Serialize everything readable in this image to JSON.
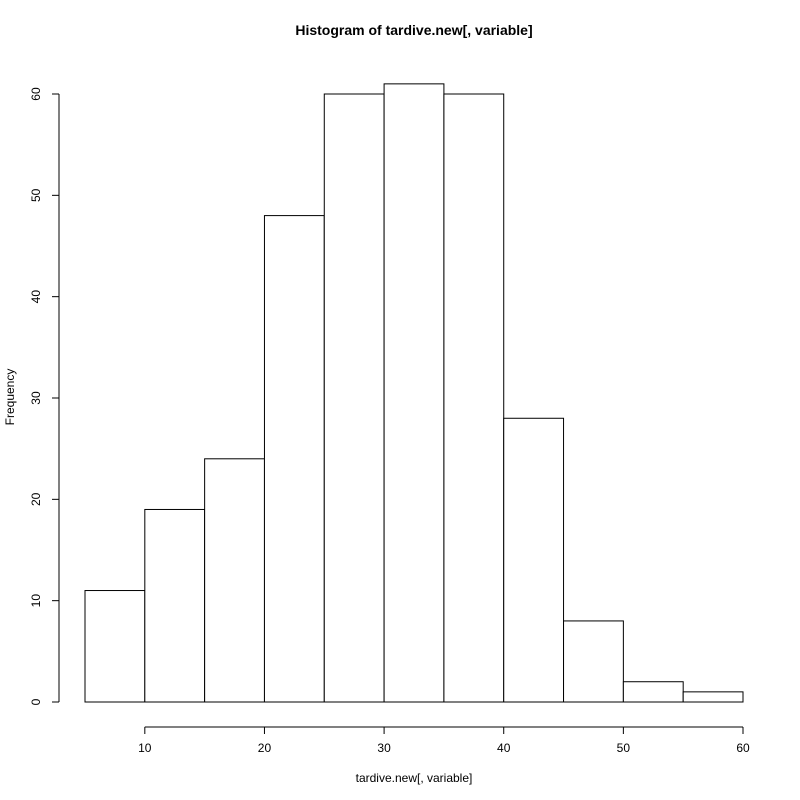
{
  "chart_data": {
    "type": "bar",
    "subtype": "histogram",
    "title": "Histogram of tardive.new[, variable]",
    "xlabel": "tardive.new[, variable]",
    "ylabel": "Frequency",
    "bins": [
      [
        5,
        10
      ],
      [
        10,
        15
      ],
      [
        15,
        20
      ],
      [
        20,
        25
      ],
      [
        25,
        30
      ],
      [
        30,
        35
      ],
      [
        35,
        40
      ],
      [
        40,
        45
      ],
      [
        45,
        50
      ],
      [
        50,
        55
      ],
      [
        55,
        60
      ]
    ],
    "values": [
      11,
      19,
      24,
      48,
      60,
      61,
      60,
      28,
      8,
      2,
      1
    ],
    "xlim": [
      5,
      60
    ],
    "ylim": [
      0,
      61
    ],
    "xticks": [
      10,
      20,
      30,
      40,
      50,
      60
    ],
    "yticks": [
      0,
      10,
      20,
      30,
      40,
      50,
      60
    ],
    "grid": false,
    "legend": "none",
    "bar_fill": "#ffffff",
    "bar_stroke": "#000000"
  }
}
